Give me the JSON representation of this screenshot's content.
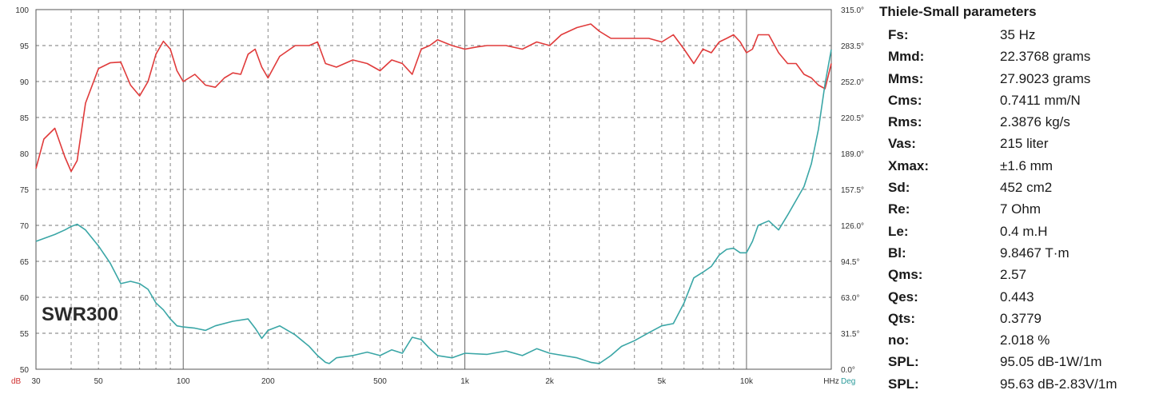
{
  "chart_data": {
    "type": "line",
    "model_label": "SWR300",
    "x_scale": "log",
    "x_ticks": [
      {
        "value": 30,
        "label": "30"
      },
      {
        "value": 50,
        "label": "50"
      },
      {
        "value": 100,
        "label": "100"
      },
      {
        "value": 200,
        "label": "200"
      },
      {
        "value": 500,
        "label": "500"
      },
      {
        "value": 1000,
        "label": "1k"
      },
      {
        "value": 2000,
        "label": "2k"
      },
      {
        "value": 5000,
        "label": "5k"
      },
      {
        "value": 10000,
        "label": "10k"
      },
      {
        "value": 20000,
        "label": "HHz"
      }
    ],
    "xlim": [
      30,
      20000
    ],
    "y_left": {
      "unit": "dB",
      "ylim": [
        50,
        100
      ],
      "ticks": [
        100,
        95,
        90,
        85,
        80,
        75,
        70,
        65,
        60,
        55,
        50
      ]
    },
    "y_right": {
      "unit": "Deg",
      "ylim": [
        0,
        315
      ],
      "ticks": [
        "315.0°",
        "283.5°",
        "252.0°",
        "220.5°",
        "189.0°",
        "157.5°",
        "126.0°",
        "94.5°",
        "63.0°",
        "31.5°",
        "0.0°"
      ]
    },
    "grid": true,
    "series": [
      {
        "axis": "left",
        "color": "#e03b3b",
        "x": [
          30,
          32,
          35,
          38,
          40,
          42,
          45,
          50,
          55,
          60,
          65,
          70,
          75,
          80,
          85,
          90,
          95,
          100,
          110,
          120,
          130,
          140,
          150,
          160,
          170,
          180,
          190,
          200,
          220,
          250,
          280,
          300,
          320,
          350,
          400,
          450,
          500,
          550,
          600,
          650,
          700,
          750,
          800,
          900,
          1000,
          1100,
          1200,
          1400,
          1600,
          1800,
          2000,
          2200,
          2500,
          2800,
          3000,
          3300,
          3600,
          4000,
          4500,
          5000,
          5500,
          6000,
          6500,
          7000,
          7500,
          8000,
          8500,
          9000,
          9500,
          10000,
          10500,
          11000,
          12000,
          13000,
          14000,
          15000,
          16000,
          17000,
          18000,
          19000,
          20000
        ],
        "values": [
          77.9,
          82,
          83.5,
          79.5,
          77.5,
          79,
          87,
          91.8,
          92.6,
          92.7,
          89.5,
          88,
          90,
          93.8,
          95.6,
          94.5,
          91.5,
          90,
          91,
          89.5,
          89.2,
          90.5,
          91.2,
          91,
          93.8,
          94.5,
          92,
          90.5,
          93.5,
          95,
          95,
          95.5,
          92.5,
          92,
          93,
          92.5,
          91.5,
          93,
          92.5,
          91,
          94.5,
          95,
          95.8,
          95,
          94.5,
          94.8,
          95,
          95,
          94.5,
          95.5,
          95,
          96.5,
          97.5,
          98,
          97,
          96,
          96,
          96,
          96,
          95.5,
          96.5,
          94.5,
          92.5,
          94.5,
          94,
          95.5,
          96,
          96.5,
          95.5,
          94,
          94.5,
          96.5,
          96.5,
          94,
          92.5,
          92.5,
          91,
          90.5,
          89.5,
          89,
          92.5
        ]
      },
      {
        "axis": "right",
        "color": "#3aa6a6",
        "x": [
          30,
          35,
          38,
          40,
          42,
          45,
          50,
          55,
          60,
          65,
          70,
          75,
          80,
          85,
          90,
          95,
          100,
          110,
          120,
          130,
          150,
          170,
          180,
          190,
          200,
          220,
          250,
          280,
          300,
          320,
          330,
          350,
          400,
          450,
          500,
          550,
          600,
          650,
          700,
          750,
          800,
          900,
          1000,
          1200,
          1400,
          1600,
          1800,
          2000,
          2500,
          2800,
          3000,
          3300,
          3600,
          4000,
          4500,
          5000,
          5500,
          6000,
          6500,
          7000,
          7500,
          8000,
          8500,
          9000,
          9500,
          10000,
          10500,
          11000,
          12000,
          13000,
          14000,
          15000,
          16000,
          17000,
          18000,
          19000,
          20000
        ],
        "values": [
          112,
          118,
          122,
          125,
          127,
          122,
          108,
          93,
          75,
          77,
          75,
          70,
          58,
          52,
          44,
          38,
          37,
          36,
          34,
          38,
          42,
          44,
          36,
          27,
          34,
          38,
          30,
          20,
          12,
          6,
          5,
          10,
          12,
          15,
          12,
          17,
          14,
          28,
          26,
          18,
          12,
          10,
          14,
          13,
          16,
          12,
          18,
          14,
          10,
          6,
          5,
          12,
          20,
          25,
          32,
          38,
          40,
          58,
          80,
          85,
          90,
          100,
          105,
          106,
          102,
          102,
          112,
          126,
          130,
          122,
          135,
          148,
          160,
          180,
          210,
          250,
          280
        ]
      }
    ]
  },
  "ts_params": {
    "title": "Thiele-Small parameters",
    "rows": [
      {
        "name": "Fs:",
        "value": "35 Hz"
      },
      {
        "name": "Mmd:",
        "value": "22.3768 grams"
      },
      {
        "name": "Mms:",
        "value": "27.9023 grams"
      },
      {
        "name": "Cms:",
        "value": "0.7411 mm/N"
      },
      {
        "name": "Rms:",
        "value": "2.3876 kg/s"
      },
      {
        "name": "Vas:",
        "value": "215 liter"
      },
      {
        "name": "Xmax:",
        "value": "±1.6 mm"
      },
      {
        "name": "Sd:",
        "value": "452 cm2"
      },
      {
        "name": "Re:",
        "value": "7 Ohm"
      },
      {
        "name": "Le:",
        "value": "0.4 m.H"
      },
      {
        "name": "Bl:",
        "value": "9.8467 T·m"
      },
      {
        "name": "Qms:",
        "value": "2.57"
      },
      {
        "name": "Qes:",
        "value": "0.443"
      },
      {
        "name": "Qts:",
        "value": "0.3779"
      },
      {
        "name": "no:",
        "value": "2.018 %"
      },
      {
        "name": "SPL:",
        "value": "95.05 dB-1W/1m"
      },
      {
        "name": "SPL:",
        "value": "95.63 dB-2.83V/1m"
      }
    ]
  }
}
